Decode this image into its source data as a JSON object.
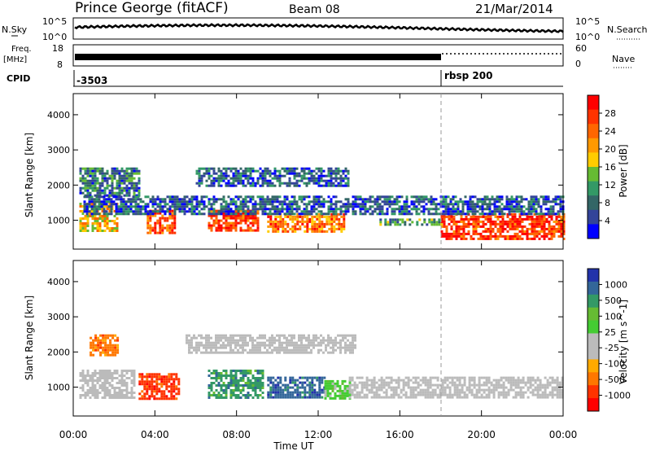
{
  "header": {
    "station": "Prince George (fitACF)",
    "beam": "Beam 08",
    "date": "21/Mar/2014"
  },
  "top_panels": {
    "nsky_label": "N.Sky",
    "nsky_ticks": [
      "10^5",
      "10^0"
    ],
    "nsearch_label": "N.Search",
    "nsearch_ticks": [
      "10^5",
      "10^0"
    ],
    "freq_label": "Freq.",
    "freq_unit": "[MHz]",
    "freq_ticks": [
      "18",
      "8"
    ],
    "nave_label": "Nave",
    "nave_ticks": [
      "60",
      "0"
    ],
    "cpid_label": "CPID",
    "cpid_values": [
      {
        "time_h": 0,
        "label": "-3503"
      },
      {
        "time_h": 18,
        "label": "rbsp 200"
      }
    ]
  },
  "chart_data": [
    {
      "type": "heatmap",
      "name": "power-panel",
      "ylabel": "Slant Range [km]",
      "xlabel": "",
      "x_range_h": [
        0,
        24
      ],
      "y_range_km": [
        180,
        4600
      ],
      "yticks": [
        1000,
        2000,
        3000,
        4000
      ],
      "colorbar": {
        "label": "Power [dB]",
        "ticks": [
          "28",
          "24",
          "20",
          "16",
          "12",
          "8",
          "4"
        ],
        "colors": [
          "#ff0000",
          "#ff3300",
          "#ff6600",
          "#ff9900",
          "#ffcc00",
          "#66bb33",
          "#339966",
          "#336666",
          "#334499",
          "#0000ff"
        ]
      },
      "regions": [
        {
          "t0": 0.3,
          "t1": 2.2,
          "r0": 700,
          "r1": 1500,
          "v": 18
        },
        {
          "t0": 3.6,
          "t1": 5.0,
          "r0": 650,
          "r1": 1300,
          "v": 24
        },
        {
          "t0": 6.6,
          "t1": 9.0,
          "r0": 700,
          "r1": 1300,
          "v": 26
        },
        {
          "t0": 9.5,
          "t1": 13.3,
          "r0": 700,
          "r1": 1200,
          "v": 22
        },
        {
          "t0": 15.0,
          "t1": 18.0,
          "r0": 850,
          "r1": 1050,
          "v": 10
        },
        {
          "t0": 18.0,
          "t1": 24.0,
          "r0": 500,
          "r1": 1200,
          "v": 26
        },
        {
          "t0": 0.3,
          "t1": 3.2,
          "r0": 1700,
          "r1": 2500,
          "v": 8
        },
        {
          "t0": 6.0,
          "t1": 13.5,
          "r0": 2000,
          "r1": 2500,
          "v": 6
        },
        {
          "t0": 0.5,
          "t1": 24.0,
          "r0": 1200,
          "r1": 1700,
          "v": 6
        }
      ]
    },
    {
      "type": "heatmap",
      "name": "velocity-panel",
      "ylabel": "Slant Range [km]",
      "xlabel": "Time UT",
      "x_range_h": [
        0,
        24
      ],
      "y_range_km": [
        180,
        4600
      ],
      "yticks": [
        1000,
        2000,
        3000,
        4000
      ],
      "xtick_labels": [
        "00:00",
        "04:00",
        "08:00",
        "12:00",
        "16:00",
        "20:00",
        "00:00"
      ],
      "colorbar": {
        "label": "Velocity [m s^-1]",
        "ticks": [
          "1000",
          "500",
          "100",
          "25",
          "-25",
          "-100",
          "-500",
          "-1000"
        ],
        "colors": [
          "#2233aa",
          "#336699",
          "#339966",
          "#66bb33",
          "#44cc33",
          "#bbbbbb",
          "#bbbbbb",
          "#ffaa00",
          "#ff7700",
          "#ff3300",
          "#ff0000"
        ]
      },
      "regions": [
        {
          "t0": 0.3,
          "t1": 3.0,
          "r0": 700,
          "r1": 1500,
          "v": 0
        },
        {
          "t0": 0.8,
          "t1": 2.2,
          "r0": 1900,
          "r1": 2500,
          "v": -400
        },
        {
          "t0": 3.2,
          "t1": 5.2,
          "r0": 700,
          "r1": 1400,
          "v": -700
        },
        {
          "t0": 6.6,
          "t1": 9.3,
          "r0": 700,
          "r1": 1500,
          "v": 300
        },
        {
          "t0": 9.5,
          "t1": 12.3,
          "r0": 700,
          "r1": 1300,
          "v": 500
        },
        {
          "t0": 12.3,
          "t1": 13.5,
          "r0": 700,
          "r1": 1200,
          "v": 60
        },
        {
          "t0": 13.5,
          "t1": 24.0,
          "r0": 700,
          "r1": 1300,
          "v": 0
        },
        {
          "t0": 5.5,
          "t1": 13.8,
          "r0": 2000,
          "r1": 2500,
          "v": 0
        }
      ]
    }
  ]
}
